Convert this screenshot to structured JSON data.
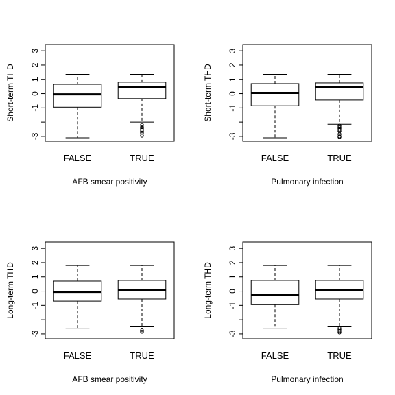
{
  "chart_data": [
    {
      "type": "box",
      "xlabel": "AFB smear positivity",
      "ylabel": "Short-term THD",
      "ylim": [
        -3.1,
        3.2
      ],
      "yticks": [
        "3",
        "2",
        "1",
        "0",
        "-1",
        "",
        "-3"
      ],
      "categories": [
        "FALSE",
        "TRUE"
      ],
      "boxes": [
        {
          "name": "FALSE",
          "min": -3.1,
          "q1": -0.95,
          "median": -0.05,
          "q3": 0.65,
          "max": 1.35,
          "outliers": []
        },
        {
          "name": "TRUE",
          "min": -2.0,
          "q1": -0.35,
          "median": 0.45,
          "q3": 0.8,
          "max": 1.35,
          "outliers": [
            -2.2,
            -2.35,
            -2.45,
            -2.55,
            -2.65,
            -2.75,
            -2.95
          ]
        }
      ]
    },
    {
      "type": "box",
      "xlabel": "Pulmonary infection",
      "ylabel": "Short-term THD",
      "ylim": [
        -3.1,
        3.2
      ],
      "yticks": [
        "3",
        "2",
        "1",
        "0",
        "-1",
        "",
        "-3"
      ],
      "categories": [
        "FALSE",
        "TRUE"
      ],
      "boxes": [
        {
          "name": "FALSE",
          "min": -3.1,
          "q1": -0.85,
          "median": 0.05,
          "q3": 0.7,
          "max": 1.35,
          "outliers": []
        },
        {
          "name": "TRUE",
          "min": -2.15,
          "q1": -0.45,
          "median": 0.45,
          "q3": 0.75,
          "max": 1.35,
          "outliers": [
            -2.25,
            -2.35,
            -2.45,
            -2.55,
            -2.65,
            -2.85,
            -3.0,
            -3.05
          ]
        }
      ]
    },
    {
      "type": "box",
      "xlabel": "AFB smear positivity",
      "ylabel": "Long-term THD",
      "ylim": [
        -3.1,
        3.2
      ],
      "yticks": [
        "3",
        "2",
        "1",
        "0",
        "-1",
        "",
        "-3"
      ],
      "categories": [
        "FALSE",
        "TRUE"
      ],
      "boxes": [
        {
          "name": "FALSE",
          "min": -2.6,
          "q1": -0.7,
          "median": -0.05,
          "q3": 0.7,
          "max": 1.8,
          "outliers": []
        },
        {
          "name": "TRUE",
          "min": -2.5,
          "q1": -0.55,
          "median": 0.1,
          "q3": 0.75,
          "max": 1.8,
          "outliers": [
            -2.75,
            -2.85
          ]
        }
      ]
    },
    {
      "type": "box",
      "xlabel": "Pulmonary infection",
      "ylabel": "Long-term THD",
      "ylim": [
        -3.1,
        3.2
      ],
      "yticks": [
        "3",
        "2",
        "1",
        "0",
        "-1",
        "",
        "-3"
      ],
      "categories": [
        "FALSE",
        "TRUE"
      ],
      "boxes": [
        {
          "name": "FALSE",
          "min": -2.6,
          "q1": -0.95,
          "median": -0.25,
          "q3": 0.75,
          "max": 1.8,
          "outliers": []
        },
        {
          "name": "TRUE",
          "min": -2.5,
          "q1": -0.55,
          "median": 0.1,
          "q3": 0.75,
          "max": 1.8,
          "outliers": [
            -2.6,
            -2.7,
            -2.8,
            -2.9
          ]
        }
      ]
    }
  ]
}
